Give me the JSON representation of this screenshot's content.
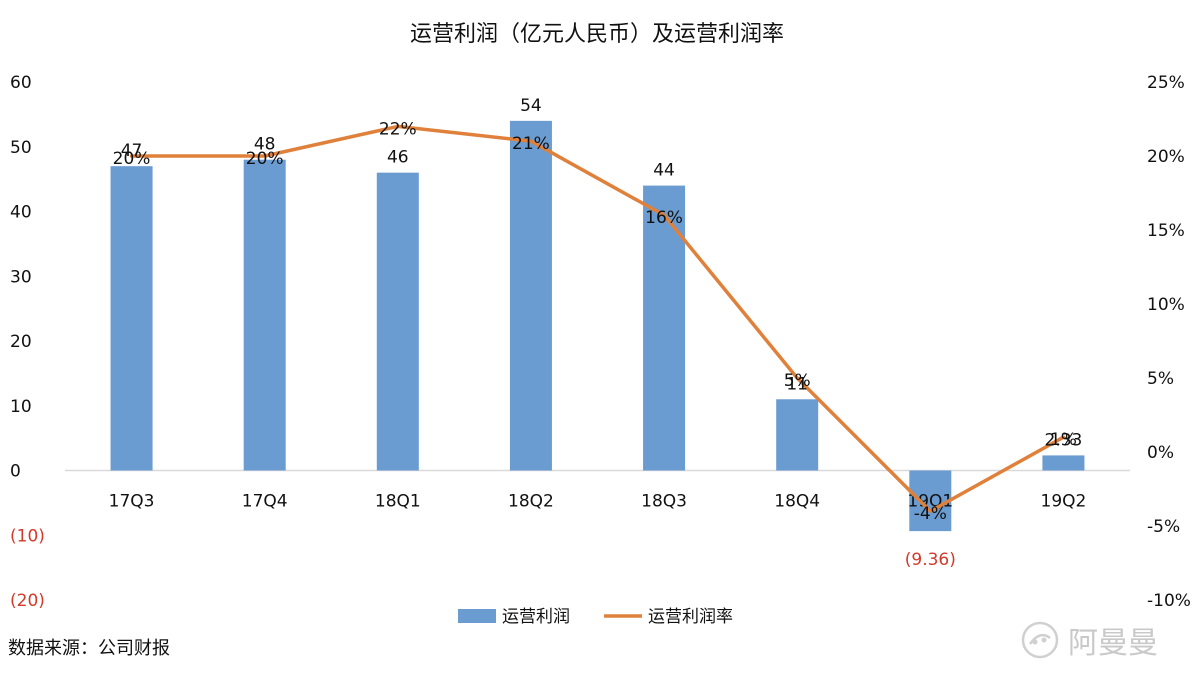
{
  "chart_data": {
    "type": "bar",
    "title": "运营利润（亿元人民币）及运营利润率",
    "categories": [
      "17Q3",
      "17Q4",
      "18Q1",
      "18Q2",
      "18Q3",
      "18Q4",
      "19Q1",
      "19Q2"
    ],
    "series": [
      {
        "name": "运营利润",
        "type": "bar",
        "axis": "left",
        "color": "#6a9bd1",
        "values": [
          47,
          48,
          46,
          54,
          44,
          11,
          -9.36,
          2.33
        ],
        "labels": [
          "47",
          "48",
          "46",
          "54",
          "44",
          "11",
          "(9.36)",
          "2.33"
        ]
      },
      {
        "name": "运营利润率",
        "type": "line",
        "axis": "right",
        "color": "#e0813b",
        "values": [
          20,
          20,
          22,
          21,
          16,
          5,
          -4,
          1
        ],
        "labels": [
          "20%",
          "20%",
          "22%",
          "21%",
          "16%",
          "5%",
          "-4%",
          "1%"
        ]
      }
    ],
    "y_left": {
      "min": -20,
      "max": 60,
      "ticks": [
        60,
        50,
        40,
        30,
        20,
        10,
        0,
        -10,
        -20
      ],
      "tick_labels": [
        "60",
        "50",
        "40",
        "30",
        "20",
        "10",
        "0",
        "(10)",
        "(20)"
      ]
    },
    "y_right": {
      "min": -10,
      "max": 25,
      "ticks": [
        25,
        20,
        15,
        10,
        5,
        0,
        -5,
        -10
      ],
      "tick_labels": [
        "25%",
        "20%",
        "15%",
        "10%",
        "5%",
        "0%",
        "-5%",
        "-10%"
      ]
    },
    "negative_color": "#d23a2b",
    "legend_position": "bottom",
    "grid": false
  },
  "source": "数据来源：公司财报",
  "watermark": "阿曼曼"
}
